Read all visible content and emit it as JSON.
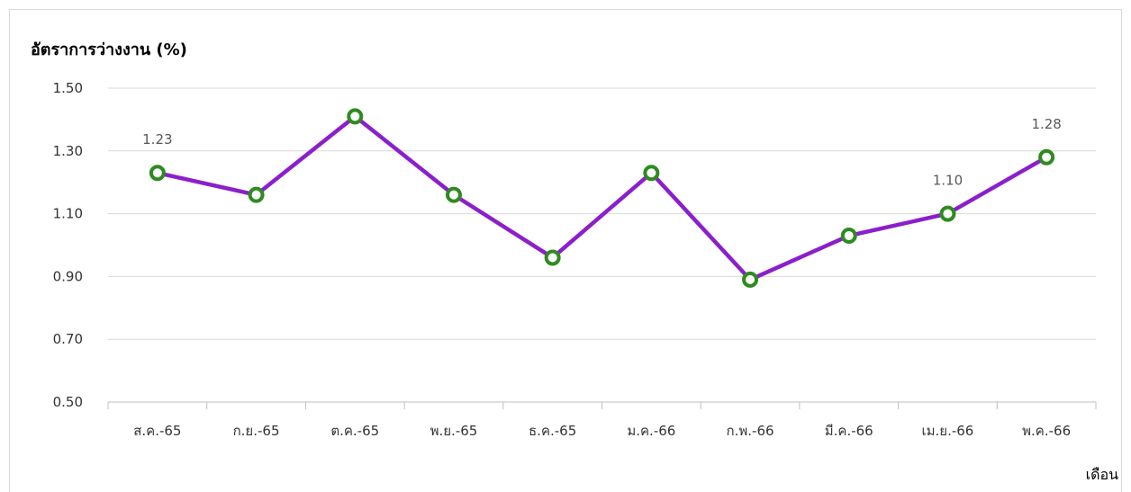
{
  "chart_data": {
    "type": "line",
    "ylabel": "อัตราการว่างงาน (%)",
    "xlabel": "เดือน",
    "categories": [
      "ส.ค.-65",
      "ก.ย.-65",
      "ต.ค.-65",
      "พ.ย.-65",
      "ธ.ค.-65",
      "ม.ค.-66",
      "ก.พ.-66",
      "มี.ค.-66",
      "เม.ย.-66",
      "พ.ค.-66"
    ],
    "series": [
      {
        "values": [
          1.23,
          1.16,
          1.41,
          1.16,
          0.96,
          1.23,
          0.89,
          1.03,
          1.1,
          1.28
        ]
      }
    ],
    "data_labels": [
      {
        "index": 0,
        "text": "1.23"
      },
      {
        "index": 8,
        "text": "1.10"
      },
      {
        "index": 9,
        "text": "1.28"
      }
    ],
    "yticks": [
      "0.50",
      "0.70",
      "0.90",
      "1.10",
      "1.30",
      "1.50"
    ],
    "ylim": [
      0.5,
      1.5
    ],
    "grid": true,
    "line_color": "#8b1fcb",
    "marker_color": "#2e8b1f"
  }
}
